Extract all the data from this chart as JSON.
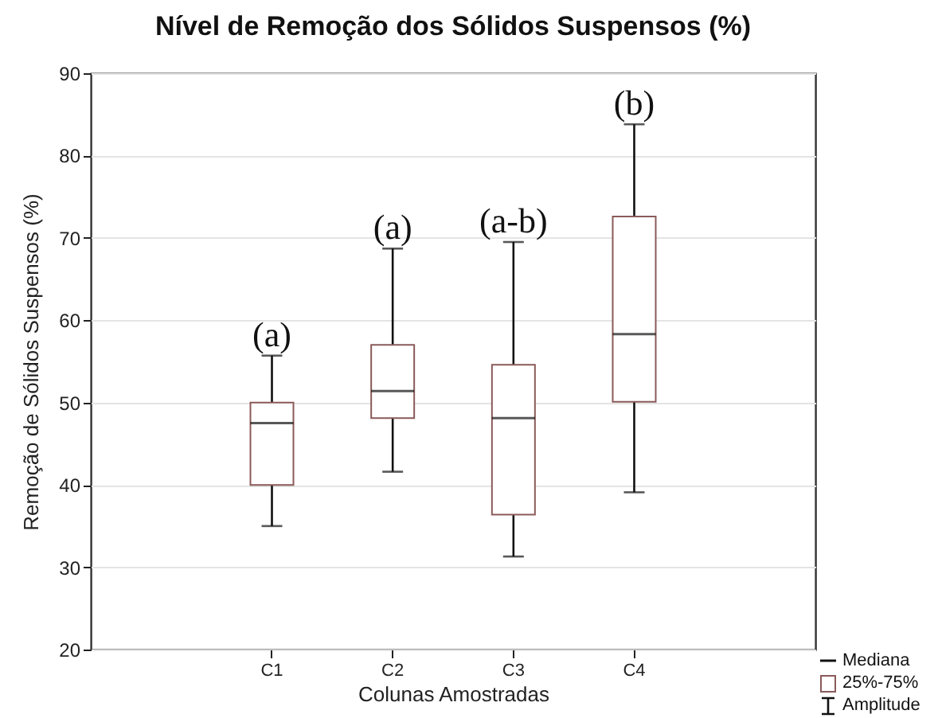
{
  "chart_data": {
    "type": "box",
    "title": "Nível de Remoção dos Sólidos Suspensos (%)",
    "xlabel": "Colunas Amostradas",
    "ylabel": "Remoção de Sólidos Suspensos (%)",
    "categories": [
      "C1",
      "C2",
      "C3",
      "C4"
    ],
    "boxes": [
      {
        "low": 35.0,
        "q1": 40.0,
        "median": 47.5,
        "q3": 50.0,
        "high": 55.7
      },
      {
        "low": 41.6,
        "q1": 48.1,
        "median": 51.4,
        "q3": 57.0,
        "high": 68.7
      },
      {
        "low": 31.3,
        "q1": 36.4,
        "median": 48.1,
        "q3": 54.6,
        "high": 69.5
      },
      {
        "low": 39.1,
        "q1": 50.1,
        "median": 58.3,
        "q3": 72.6,
        "high": 83.8
      }
    ],
    "color": "#8b5a5a",
    "ylim": [
      20,
      90
    ],
    "yticks": [
      20,
      30,
      40,
      50,
      60,
      70,
      80,
      90
    ],
    "grid": "y",
    "annotations": [
      {
        "text": "(a)",
        "x": "C1",
        "y": 55.7
      },
      {
        "text": "(a)",
        "x": "C2",
        "y": 68.7
      },
      {
        "text": "(a-b)",
        "x": "C3",
        "y": 69.5
      },
      {
        "text": "(b)",
        "x": "C4",
        "y": 83.8
      },
      "Mediana",
      "25%-75%",
      "Amplitude"
    ]
  }
}
